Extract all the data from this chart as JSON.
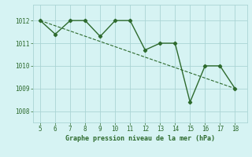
{
  "x": [
    5,
    6,
    7,
    8,
    9,
    10,
    11,
    12,
    13,
    14,
    15,
    16,
    17,
    18
  ],
  "y": [
    1012.0,
    1011.4,
    1012.0,
    1012.0,
    1011.3,
    1012.0,
    1012.0,
    1010.7,
    1011.0,
    1011.0,
    1008.4,
    1010.0,
    1010.0,
    1009.0
  ],
  "line_color": "#2d6a2d",
  "marker": "D",
  "marker_size": 2.2,
  "line_width": 1.0,
  "xlabel": "Graphe pression niveau de la mer (hPa)",
  "xlim": [
    4.5,
    18.8
  ],
  "ylim": [
    1007.5,
    1012.7
  ],
  "yticks": [
    1008,
    1009,
    1010,
    1011,
    1012
  ],
  "xticks": [
    5,
    6,
    7,
    8,
    9,
    10,
    11,
    12,
    13,
    14,
    15,
    16,
    17,
    18
  ],
  "bg_color": "#d6f3f3",
  "grid_color": "#aad4d4",
  "xlabel_color": "#2d6a2d",
  "tick_color": "#2d6a2d",
  "trend_x": [
    5,
    18
  ],
  "trend_y": [
    1012.0,
    1009.0
  ]
}
